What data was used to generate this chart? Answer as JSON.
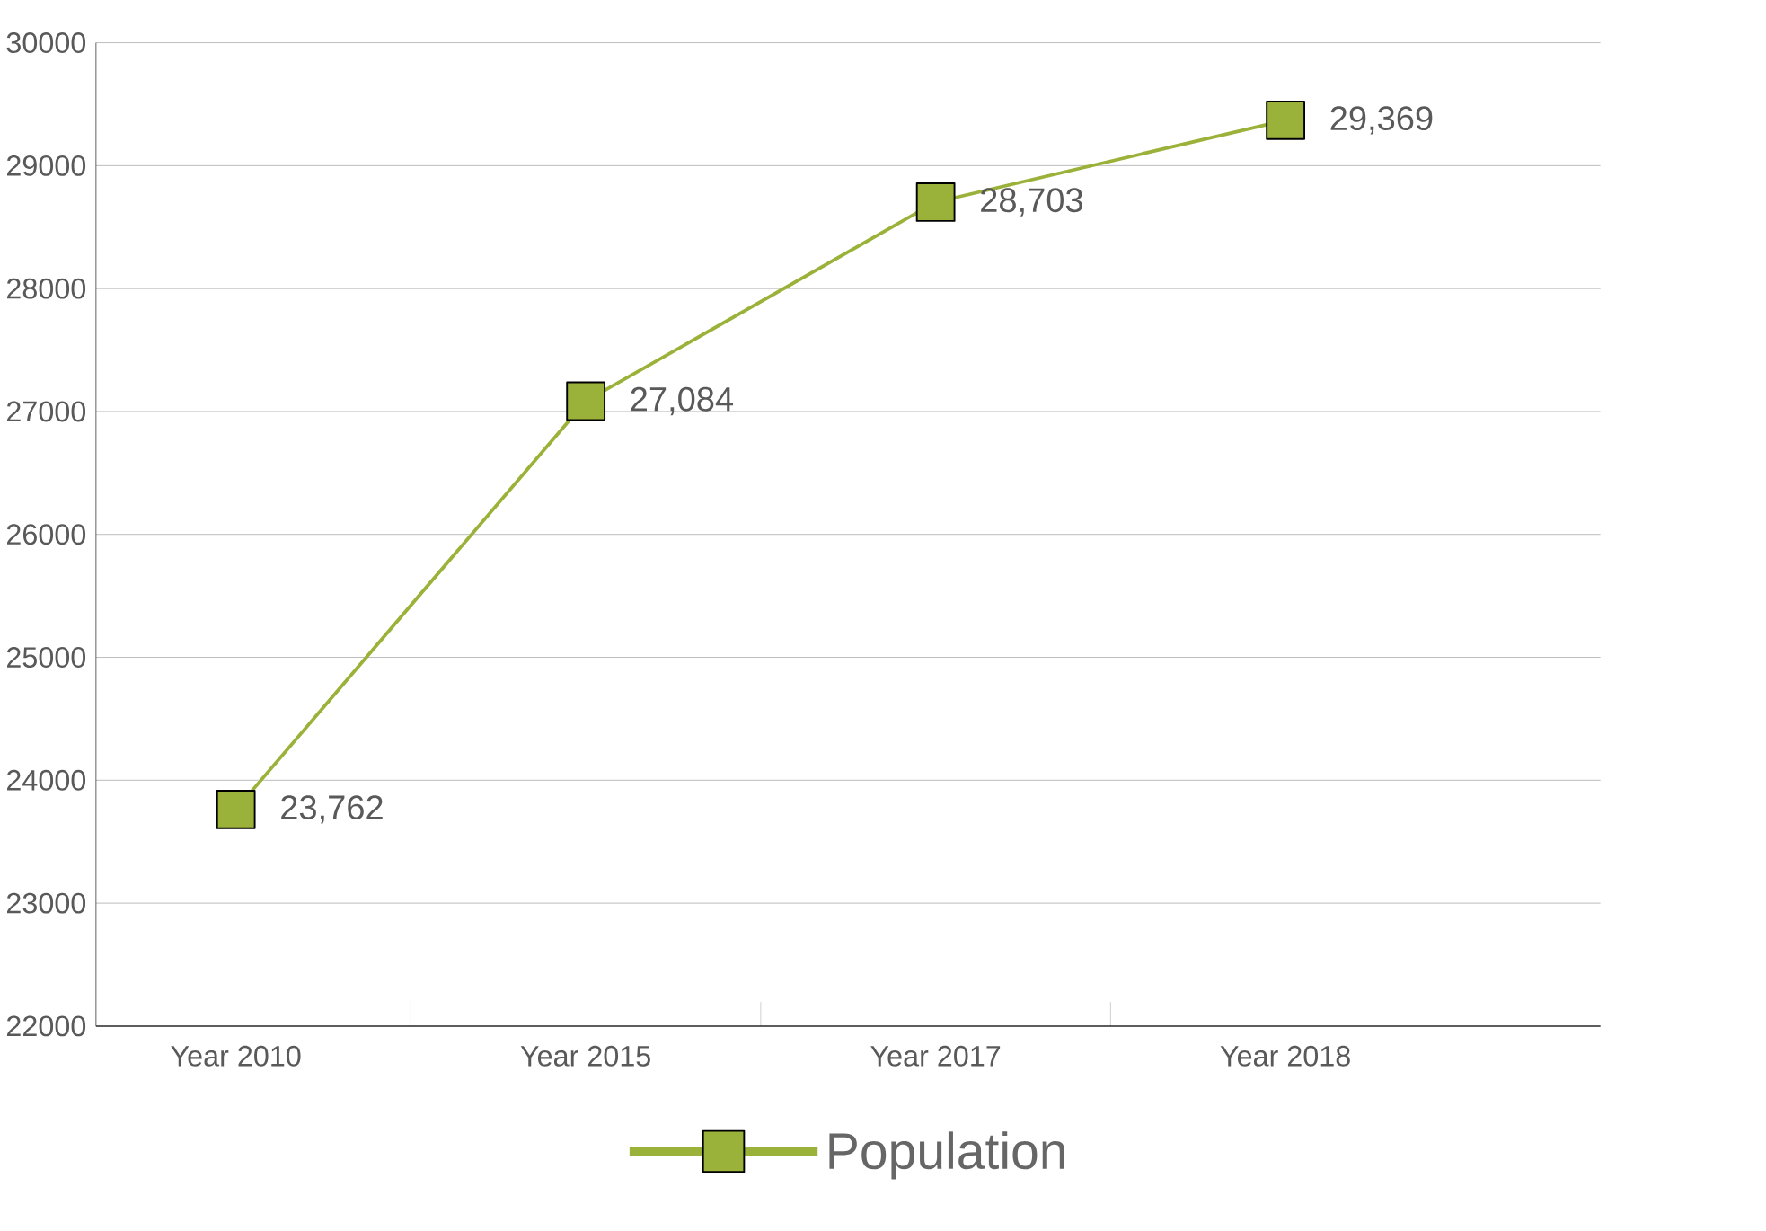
{
  "chart_data": {
    "type": "line",
    "categories": [
      "Year 2010",
      "Year 2015",
      "Year 2017",
      "Year 2018"
    ],
    "series": [
      {
        "name": "Population",
        "color": "#9bb23a",
        "values": [
          23762,
          27084,
          28703,
          29369
        ],
        "value_labels": [
          "23,762",
          "27,084",
          "28,703",
          "29,369"
        ]
      }
    ],
    "ylim": [
      22000,
      30000
    ],
    "yticks": [
      22000,
      23000,
      24000,
      25000,
      26000,
      27000,
      28000,
      29000,
      30000
    ],
    "grid": "y",
    "legend": "bottom",
    "marker": "square",
    "line_style": "solid"
  }
}
